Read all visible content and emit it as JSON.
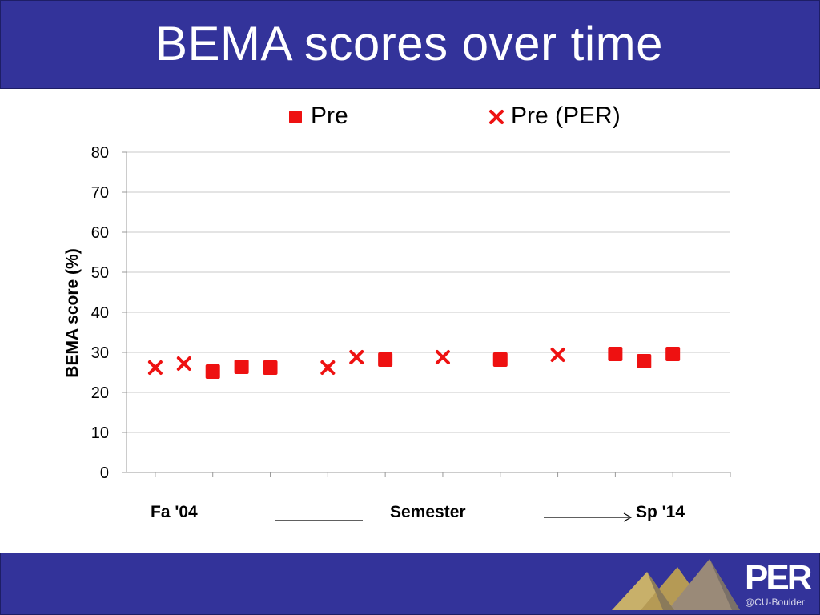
{
  "slide": {
    "title": "BEMA scores over time"
  },
  "logo": {
    "text": "PER",
    "subtext": "@CU-Boulder"
  },
  "colors": {
    "header_bg": "#33339a",
    "marker": "#ee1111",
    "grid": "#c8c8c8",
    "axis": "#999999"
  },
  "chart_data": {
    "type": "scatter",
    "title": "",
    "ylabel": "BEMA score (%)",
    "xlabel": "Semester",
    "x_start_label": "Fa '04",
    "x_end_label": "Sp '14",
    "ylim": [
      0,
      80
    ],
    "yticks": [
      0,
      10,
      20,
      30,
      40,
      50,
      60,
      70,
      80
    ],
    "x_range": [
      0,
      21
    ],
    "grid": true,
    "legend_position": "top",
    "series": [
      {
        "name": "Pre",
        "marker": "square",
        "x": [
          3,
          4,
          5,
          9,
          13,
          17,
          18,
          19
        ],
        "y": [
          25.2,
          26.4,
          26.2,
          28.2,
          28.2,
          29.6,
          27.8,
          29.6
        ]
      },
      {
        "name": "Pre (PER)",
        "marker": "x",
        "x": [
          1,
          2,
          7,
          8,
          11,
          15
        ],
        "y": [
          26.2,
          27.2,
          26.2,
          28.8,
          28.8,
          29.4
        ]
      }
    ]
  }
}
